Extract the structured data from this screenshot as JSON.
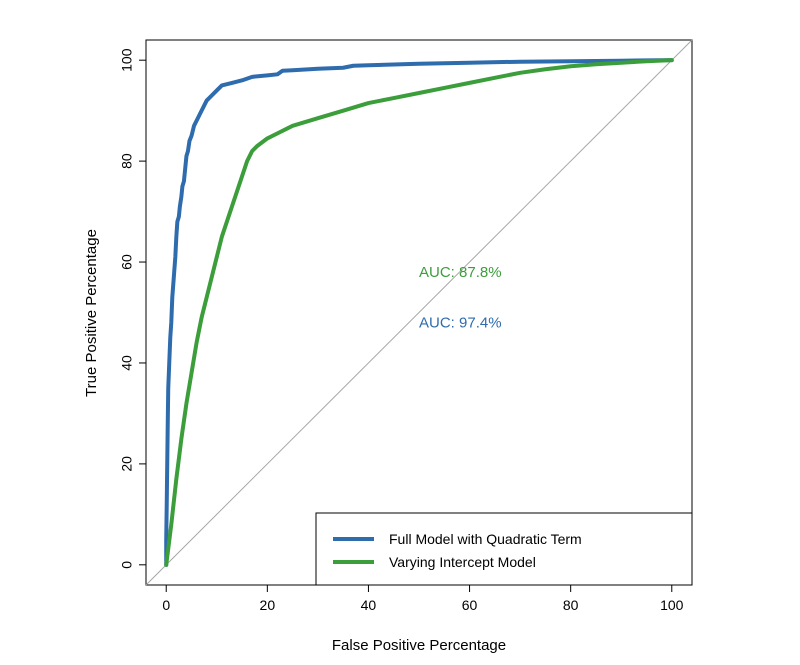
{
  "chart_data": {
    "type": "line",
    "title": "",
    "xlabel": "False Positive Percentage",
    "ylabel": "True Positive Percentage",
    "xlim": [
      -4,
      104
    ],
    "ylim": [
      -4,
      104
    ],
    "x_ticks": [
      0,
      20,
      40,
      60,
      80,
      100
    ],
    "y_ticks": [
      0,
      20,
      40,
      60,
      80,
      100
    ],
    "grid": false,
    "legend_position": "bottom-right",
    "reference_line": {
      "from": [
        0,
        0
      ],
      "to": [
        100,
        100
      ],
      "color": "#a6a6a6"
    },
    "series": [
      {
        "name": "Full Model with Quadratic Term",
        "color": "#2e6cae",
        "points": [
          [
            0,
            0
          ],
          [
            0,
            5
          ],
          [
            0.1,
            12
          ],
          [
            0.2,
            20
          ],
          [
            0.3,
            28
          ],
          [
            0.4,
            35
          ],
          [
            0.6,
            40
          ],
          [
            0.8,
            45
          ],
          [
            1,
            48
          ],
          [
            1.2,
            53
          ],
          [
            1.5,
            57
          ],
          [
            1.8,
            61
          ],
          [
            2,
            65
          ],
          [
            2.2,
            68
          ],
          [
            2.5,
            69
          ],
          [
            2.7,
            71
          ],
          [
            3,
            73
          ],
          [
            3.2,
            75
          ],
          [
            3.5,
            76
          ],
          [
            3.8,
            79
          ],
          [
            4,
            81
          ],
          [
            4.3,
            82
          ],
          [
            4.6,
            84
          ],
          [
            5,
            85
          ],
          [
            5.5,
            87
          ],
          [
            6,
            88
          ],
          [
            7,
            90
          ],
          [
            8,
            92
          ],
          [
            9,
            93
          ],
          [
            10,
            94
          ],
          [
            11,
            95
          ],
          [
            13,
            95.5
          ],
          [
            15,
            96
          ],
          [
            17,
            96.7
          ],
          [
            20,
            97
          ],
          [
            22,
            97.2
          ],
          [
            23,
            97.9
          ],
          [
            25,
            98
          ],
          [
            30,
            98.3
          ],
          [
            35,
            98.5
          ],
          [
            37,
            98.9
          ],
          [
            40,
            99
          ],
          [
            50,
            99.3
          ],
          [
            60,
            99.5
          ],
          [
            70,
            99.7
          ],
          [
            80,
            99.8
          ],
          [
            90,
            99.9
          ],
          [
            100,
            100
          ]
        ]
      },
      {
        "name": "Varying Intercept Model",
        "color": "#3b9e3b",
        "points": [
          [
            0,
            0
          ],
          [
            1,
            8
          ],
          [
            2,
            17
          ],
          [
            3,
            25
          ],
          [
            4,
            32
          ],
          [
            5,
            38
          ],
          [
            6,
            44
          ],
          [
            7,
            49
          ],
          [
            8,
            53
          ],
          [
            9,
            57
          ],
          [
            10,
            61
          ],
          [
            11,
            65
          ],
          [
            12,
            68
          ],
          [
            13,
            71
          ],
          [
            14,
            74
          ],
          [
            15,
            77
          ],
          [
            16,
            80
          ],
          [
            17,
            82
          ],
          [
            18,
            83
          ],
          [
            20,
            84.5
          ],
          [
            22,
            85.5
          ],
          [
            25,
            87
          ],
          [
            30,
            88.5
          ],
          [
            35,
            90
          ],
          [
            40,
            91.5
          ],
          [
            45,
            92.5
          ],
          [
            50,
            93.5
          ],
          [
            55,
            94.5
          ],
          [
            60,
            95.5
          ],
          [
            65,
            96.5
          ],
          [
            70,
            97.5
          ],
          [
            75,
            98.2
          ],
          [
            80,
            98.8
          ],
          [
            85,
            99.2
          ],
          [
            90,
            99.5
          ],
          [
            95,
            99.8
          ],
          [
            100,
            100
          ]
        ]
      }
    ],
    "annotations": [
      {
        "text": "AUC: 87.8%",
        "x": 50,
        "y": 58,
        "color": "#3b9e3b"
      },
      {
        "text": "AUC: 97.4%",
        "x": 50,
        "y": 48,
        "color": "#2e6cae"
      }
    ]
  }
}
